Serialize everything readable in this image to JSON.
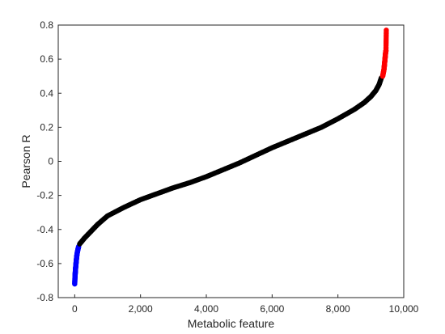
{
  "chart_data": {
    "type": "scatter",
    "xlabel": "Metabolic feature",
    "ylabel": "Pearson R",
    "xlim": [
      -500,
      10000
    ],
    "ylim": [
      -0.8,
      0.8
    ],
    "x_ticks": [
      0,
      2000,
      4000,
      6000,
      8000,
      10000
    ],
    "x_tick_labels": [
      "0",
      "2,000",
      "4,000",
      "6,000",
      "8,000",
      "10,000"
    ],
    "y_ticks": [
      -0.8,
      -0.6,
      -0.4,
      -0.2,
      0,
      0.2,
      0.4,
      0.6,
      0.8
    ],
    "y_tick_labels": [
      "-0.8",
      "-0.6",
      "-0.4",
      "-0.2",
      "0",
      "0.2",
      "0.4",
      "0.6",
      "0.8"
    ],
    "grid": false,
    "colors": {
      "negative": "#0000ff",
      "neutral": "#000000",
      "positive": "#ff0000",
      "axis": "#262626"
    },
    "series": [
      {
        "color": "#0000ff",
        "points": [
          [
            0,
            -0.72
          ],
          [
            8,
            -0.68
          ],
          [
            15,
            -0.66
          ],
          [
            22,
            -0.64
          ],
          [
            30,
            -0.62
          ],
          [
            40,
            -0.6
          ],
          [
            50,
            -0.58
          ],
          [
            60,
            -0.56
          ],
          [
            75,
            -0.54
          ],
          [
            95,
            -0.52
          ],
          [
            120,
            -0.5
          ]
        ]
      },
      {
        "color": "#000000",
        "points": [
          [
            150,
            -0.485
          ],
          [
            300,
            -0.45
          ],
          [
            500,
            -0.41
          ],
          [
            700,
            -0.37
          ],
          [
            1000,
            -0.32
          ],
          [
            1500,
            -0.27
          ],
          [
            2000,
            -0.225
          ],
          [
            2500,
            -0.19
          ],
          [
            3000,
            -0.155
          ],
          [
            3500,
            -0.125
          ],
          [
            4000,
            -0.09
          ],
          [
            4500,
            -0.05
          ],
          [
            5000,
            -0.01
          ],
          [
            5500,
            0.035
          ],
          [
            6000,
            0.08
          ],
          [
            6500,
            0.12
          ],
          [
            7000,
            0.16
          ],
          [
            7500,
            0.2
          ],
          [
            8000,
            0.25
          ],
          [
            8500,
            0.305
          ],
          [
            8800,
            0.345
          ],
          [
            9000,
            0.38
          ],
          [
            9150,
            0.415
          ],
          [
            9250,
            0.45
          ],
          [
            9320,
            0.49
          ]
        ]
      },
      {
        "color": "#ff0000",
        "points": [
          [
            9360,
            0.5
          ],
          [
            9380,
            0.52
          ],
          [
            9400,
            0.54
          ],
          [
            9410,
            0.56
          ],
          [
            9420,
            0.58
          ],
          [
            9430,
            0.6
          ],
          [
            9440,
            0.62
          ],
          [
            9450,
            0.64
          ],
          [
            9460,
            0.65
          ],
          [
            9470,
            0.77
          ]
        ]
      }
    ]
  }
}
